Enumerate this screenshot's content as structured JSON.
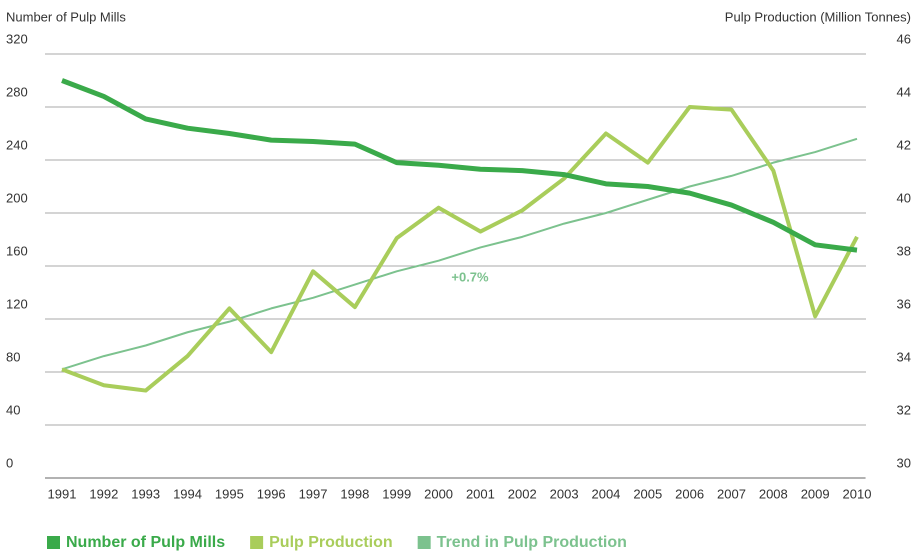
{
  "chart_data": {
    "type": "line",
    "y_label": "Number of Pulp Mills",
    "y2_label": "Pulp Production (Million Tonnes)",
    "annotation": "+0.7%",
    "categories": [
      "1991",
      "1992",
      "1993",
      "1994",
      "1995",
      "1996",
      "1997",
      "1998",
      "1999",
      "2000",
      "2001",
      "2002",
      "2003",
      "2004",
      "2005",
      "2006",
      "2007",
      "2008",
      "2009",
      "2010"
    ],
    "ylim": [
      0,
      320
    ],
    "yticks": [
      0,
      40,
      80,
      120,
      160,
      200,
      240,
      280,
      320
    ],
    "y2lim": [
      30,
      46
    ],
    "y2ticks": [
      30,
      32,
      34,
      36,
      38,
      40,
      42,
      44,
      46
    ],
    "grid": true,
    "legend": "bottom",
    "series": [
      {
        "name": "Number of Pulp Mills",
        "color": "#3aaa4a",
        "width": 5,
        "values": [
          300,
          288,
          271,
          264,
          260,
          255,
          254,
          252,
          238,
          236,
          233,
          232,
          229,
          222,
          220,
          215,
          206,
          193,
          176,
          172
        ]
      },
      {
        "name": "Pulp Production",
        "color": "#a9cd5b",
        "width": 4,
        "axis": "y2",
        "values": [
          34.1,
          33.5,
          33.3,
          34.6,
          36.4,
          34.75,
          37.8,
          36.45,
          39.05,
          40.2,
          39.3,
          40.1,
          41.3,
          43.0,
          41.9,
          44.0,
          43.9,
          41.6,
          36.1,
          39.1
        ]
      },
      {
        "name": "Trend in Pulp Production",
        "color": "#7cc28e",
        "width": 2,
        "axis": "y2",
        "values": [
          34.1,
          34.6,
          35.0,
          35.5,
          35.9,
          36.4,
          36.8,
          37.3,
          37.8,
          38.2,
          38.7,
          39.1,
          39.6,
          40.0,
          40.5,
          41.0,
          41.4,
          41.9,
          42.3,
          42.8
        ]
      }
    ]
  }
}
